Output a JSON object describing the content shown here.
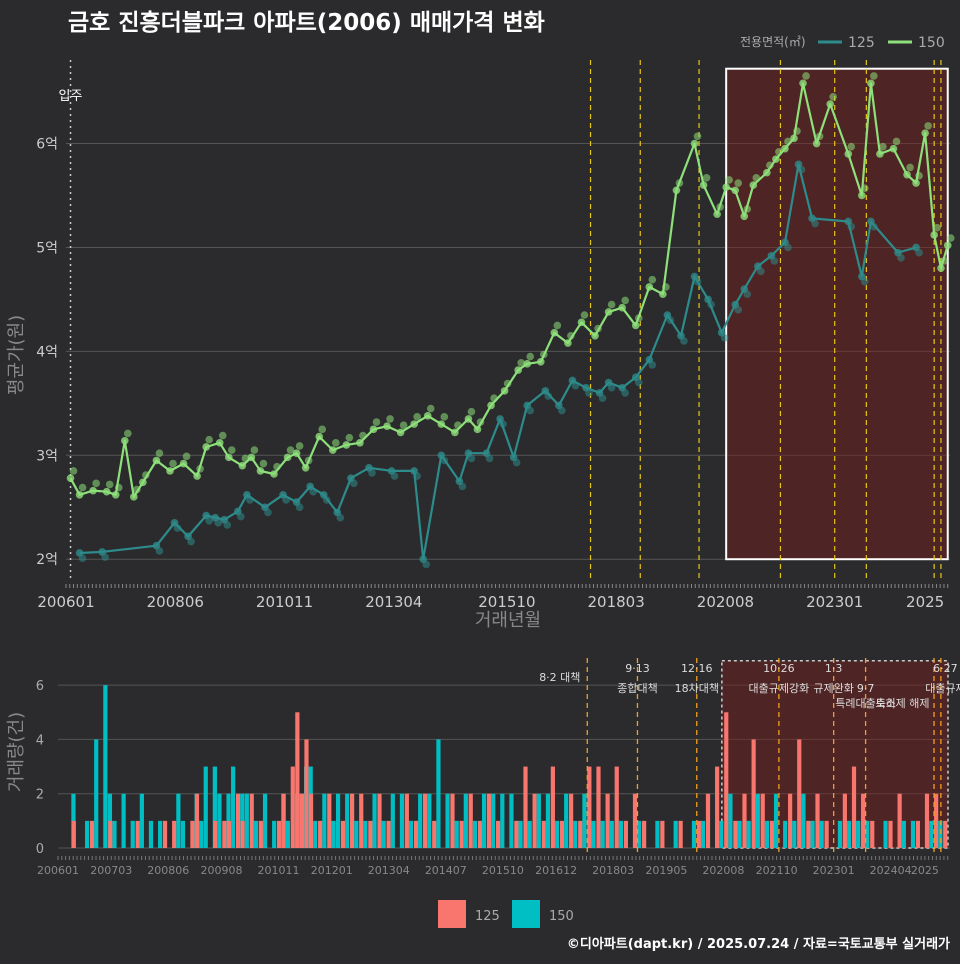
{
  "title": "금호 진흥더블파크 아파트(2006) 매매가격 변화",
  "footer": "©디아파트(dapt.kr) / 2025.07.24 / 자료=국토교통부 실거래가",
  "colors": {
    "background": "#2b2b2d",
    "s125_line": "#2e8b8b",
    "s150_line": "#8ee07a",
    "bar125": "#f8766d",
    "bar150": "#00bfc4",
    "policy": "#e6c619",
    "highlight": "#7a1d1d",
    "grid": "#555555"
  },
  "chart_data": [
    {
      "type": "line",
      "ylabel": "평균가(원)",
      "xlabel": "거래년월",
      "ylim": [
        1.8,
        6.9
      ],
      "y_ticks": [
        {
          "v": 2,
          "label": "2억"
        },
        {
          "v": 3,
          "label": "3억"
        },
        {
          "v": 4,
          "label": "4억"
        },
        {
          "v": 5,
          "label": "5억"
        },
        {
          "v": 6,
          "label": "6억"
        }
      ],
      "x_ticks": [
        "200601",
        "200806",
        "201011",
        "201304",
        "201510",
        "201803",
        "202008",
        "202301",
        "2025"
      ],
      "legend_title": "전용면적(㎡)",
      "legend_position": "top-right",
      "move_in_label": "입주",
      "series": [
        {
          "name": "125",
          "points": [
            [
              2006.3,
              2.06
            ],
            [
              2006.8,
              2.07
            ],
            [
              2008.0,
              2.13
            ],
            [
              2008.4,
              2.35
            ],
            [
              2008.7,
              2.22
            ],
            [
              2009.1,
              2.42
            ],
            [
              2009.3,
              2.4
            ],
            [
              2009.5,
              2.38
            ],
            [
              2009.8,
              2.46
            ],
            [
              2010.0,
              2.62
            ],
            [
              2010.4,
              2.5
            ],
            [
              2010.8,
              2.62
            ],
            [
              2011.1,
              2.55
            ],
            [
              2011.4,
              2.7
            ],
            [
              2011.7,
              2.62
            ],
            [
              2012.0,
              2.45
            ],
            [
              2012.3,
              2.78
            ],
            [
              2012.7,
              2.88
            ],
            [
              2013.2,
              2.85
            ],
            [
              2013.7,
              2.85
            ],
            [
              2013.9,
              2.0
            ],
            [
              2014.3,
              3.0
            ],
            [
              2014.7,
              2.75
            ],
            [
              2014.9,
              3.02
            ],
            [
              2015.3,
              3.02
            ],
            [
              2015.6,
              3.35
            ],
            [
              2015.9,
              2.98
            ],
            [
              2016.2,
              3.48
            ],
            [
              2016.6,
              3.62
            ],
            [
              2016.9,
              3.48
            ],
            [
              2017.2,
              3.72
            ],
            [
              2017.5,
              3.65
            ],
            [
              2017.8,
              3.6
            ],
            [
              2018.0,
              3.7
            ],
            [
              2018.3,
              3.65
            ],
            [
              2018.6,
              3.75
            ],
            [
              2018.9,
              3.92
            ],
            [
              2019.3,
              4.35
            ],
            [
              2019.6,
              4.15
            ],
            [
              2019.9,
              4.72
            ],
            [
              2020.2,
              4.5
            ],
            [
              2020.5,
              4.18
            ],
            [
              2020.8,
              4.45
            ],
            [
              2021.0,
              4.6
            ],
            [
              2021.3,
              4.82
            ],
            [
              2021.6,
              4.92
            ],
            [
              2021.9,
              5.05
            ],
            [
              2022.2,
              5.8
            ],
            [
              2022.5,
              5.28
            ],
            [
              2023.3,
              5.25
            ],
            [
              2023.6,
              4.72
            ],
            [
              2023.8,
              5.25
            ],
            [
              2024.4,
              4.95
            ],
            [
              2024.8,
              5.0
            ]
          ]
        },
        {
          "name": "150",
          "points": [
            [
              2006.1,
              2.78
            ],
            [
              2006.3,
              2.62
            ],
            [
              2006.6,
              2.66
            ],
            [
              2006.9,
              2.65
            ],
            [
              2007.1,
              2.62
            ],
            [
              2007.3,
              3.14
            ],
            [
              2007.5,
              2.6
            ],
            [
              2007.7,
              2.74
            ],
            [
              2008.0,
              2.95
            ],
            [
              2008.3,
              2.85
            ],
            [
              2008.6,
              2.92
            ],
            [
              2008.9,
              2.8
            ],
            [
              2009.1,
              3.08
            ],
            [
              2009.4,
              3.12
            ],
            [
              2009.6,
              2.98
            ],
            [
              2009.9,
              2.9
            ],
            [
              2010.1,
              2.98
            ],
            [
              2010.3,
              2.85
            ],
            [
              2010.6,
              2.82
            ],
            [
              2010.9,
              2.98
            ],
            [
              2011.1,
              3.02
            ],
            [
              2011.3,
              2.88
            ],
            [
              2011.6,
              3.18
            ],
            [
              2011.9,
              3.05
            ],
            [
              2012.2,
              3.1
            ],
            [
              2012.5,
              3.12
            ],
            [
              2012.8,
              3.25
            ],
            [
              2013.1,
              3.28
            ],
            [
              2013.4,
              3.22
            ],
            [
              2013.7,
              3.3
            ],
            [
              2014.0,
              3.38
            ],
            [
              2014.3,
              3.3
            ],
            [
              2014.6,
              3.22
            ],
            [
              2014.9,
              3.35
            ],
            [
              2015.1,
              3.25
            ],
            [
              2015.4,
              3.48
            ],
            [
              2015.7,
              3.62
            ],
            [
              2016.0,
              3.82
            ],
            [
              2016.2,
              3.88
            ],
            [
              2016.5,
              3.9
            ],
            [
              2016.8,
              4.18
            ],
            [
              2017.1,
              4.08
            ],
            [
              2017.4,
              4.28
            ],
            [
              2017.7,
              4.15
            ],
            [
              2018.0,
              4.38
            ],
            [
              2018.3,
              4.42
            ],
            [
              2018.6,
              4.25
            ],
            [
              2018.9,
              4.62
            ],
            [
              2019.2,
              4.55
            ],
            [
              2019.5,
              5.55
            ],
            [
              2019.9,
              6.0
            ],
            [
              2020.1,
              5.6
            ],
            [
              2020.4,
              5.32
            ],
            [
              2020.6,
              5.58
            ],
            [
              2020.8,
              5.55
            ],
            [
              2021.0,
              5.3
            ],
            [
              2021.2,
              5.6
            ],
            [
              2021.5,
              5.72
            ],
            [
              2021.7,
              5.85
            ],
            [
              2021.9,
              5.95
            ],
            [
              2022.1,
              6.05
            ],
            [
              2022.3,
              6.58
            ],
            [
              2022.6,
              6.0
            ],
            [
              2022.9,
              6.38
            ],
            [
              2023.3,
              5.9
            ],
            [
              2023.6,
              5.5
            ],
            [
              2023.8,
              6.58
            ],
            [
              2024.0,
              5.9
            ],
            [
              2024.3,
              5.95
            ],
            [
              2024.6,
              5.7
            ],
            [
              2024.8,
              5.62
            ],
            [
              2025.0,
              6.1
            ],
            [
              2025.2,
              5.12
            ],
            [
              2025.35,
              4.8
            ],
            [
              2025.5,
              5.02
            ]
          ]
        }
      ],
      "policy_years": [
        2017.6,
        2018.7,
        2020.0,
        2021.8,
        2023.0,
        2023.7,
        2025.2,
        2025.35
      ],
      "highlight_x": [
        2020.6,
        2025.5
      ],
      "highlight_y": [
        2.0,
        6.72
      ]
    },
    {
      "type": "bar",
      "ylabel": "거래량(건)",
      "ylim": [
        0,
        7
      ],
      "y_ticks": [
        0,
        2,
        4,
        6
      ],
      "x_ticks": [
        "200601",
        "200703",
        "200806",
        "200908",
        "201011",
        "201201",
        "201304",
        "201407",
        "201510",
        "201612",
        "201803",
        "201905",
        "202008",
        "202110",
        "202301",
        "202404",
        "2025"
      ],
      "legend": [
        "125",
        "150"
      ],
      "annotations": [
        {
          "date": "8·2 대책",
          "title": ""
        },
        {
          "date": "9·13",
          "title": "종합대책"
        },
        {
          "date": "12·16",
          "title": "18차대책"
        },
        {
          "date": "10·26",
          "title": "대출규제강화"
        },
        {
          "date": "1·3",
          "title": "규제완화"
        },
        {
          "date": "9·7",
          "title": "특례대출축소"
        },
        {
          "date": "토허제 해제",
          "title": ""
        },
        {
          "date": "6·27",
          "title": "대출규제"
        }
      ],
      "bars": [
        [
          2006.1,
          0,
          0
        ],
        [
          2006.2,
          0,
          2
        ],
        [
          2006.3,
          1,
          0
        ],
        [
          2006.5,
          0,
          1
        ],
        [
          2006.7,
          1,
          4
        ],
        [
          2006.9,
          0,
          6
        ],
        [
          2007.0,
          0,
          2
        ],
        [
          2007.1,
          1,
          1
        ],
        [
          2007.3,
          0,
          2
        ],
        [
          2007.5,
          0,
          1
        ],
        [
          2007.7,
          1,
          2
        ],
        [
          2007.9,
          0,
          1
        ],
        [
          2008.1,
          0,
          1
        ],
        [
          2008.3,
          1,
          0
        ],
        [
          2008.5,
          1,
          2
        ],
        [
          2008.6,
          0,
          1
        ],
        [
          2008.9,
          1,
          2
        ],
        [
          2009.0,
          2,
          1
        ],
        [
          2009.1,
          0,
          3
        ],
        [
          2009.3,
          0,
          3
        ],
        [
          2009.4,
          1,
          2
        ],
        [
          2009.6,
          1,
          2
        ],
        [
          2009.7,
          1,
          3
        ],
        [
          2009.9,
          2,
          2
        ],
        [
          2010.0,
          1,
          2
        ],
        [
          2010.2,
          2,
          1
        ],
        [
          2010.4,
          1,
          2
        ],
        [
          2010.6,
          0,
          1
        ],
        [
          2010.8,
          1,
          2
        ],
        [
          2010.9,
          2,
          1
        ],
        [
          2011.1,
          3,
          2
        ],
        [
          2011.2,
          5,
          2
        ],
        [
          2011.3,
          2,
          3
        ],
        [
          2011.4,
          4,
          3
        ],
        [
          2011.5,
          2,
          1
        ],
        [
          2011.7,
          1,
          2
        ],
        [
          2011.9,
          2,
          1
        ],
        [
          2012.0,
          0,
          2
        ],
        [
          2012.2,
          1,
          2
        ],
        [
          2012.4,
          2,
          1
        ],
        [
          2012.6,
          2,
          1
        ],
        [
          2012.8,
          1,
          2
        ],
        [
          2013.0,
          2,
          1
        ],
        [
          2013.2,
          1,
          2
        ],
        [
          2013.4,
          0,
          2
        ],
        [
          2013.6,
          2,
          1
        ],
        [
          2013.8,
          1,
          2
        ],
        [
          2014.0,
          2,
          2
        ],
        [
          2014.2,
          1,
          4
        ],
        [
          2014.4,
          0,
          2
        ],
        [
          2014.6,
          2,
          1
        ],
        [
          2014.8,
          1,
          2
        ],
        [
          2015.0,
          2,
          1
        ],
        [
          2015.2,
          1,
          2
        ],
        [
          2015.4,
          2,
          2
        ],
        [
          2015.6,
          1,
          2
        ],
        [
          2015.8,
          0,
          2
        ],
        [
          2016.0,
          1,
          1
        ],
        [
          2016.2,
          3,
          1
        ],
        [
          2016.4,
          2,
          2
        ],
        [
          2016.6,
          1,
          2
        ],
        [
          2016.8,
          3,
          1
        ],
        [
          2017.0,
          1,
          2
        ],
        [
          2017.2,
          2,
          1
        ],
        [
          2017.4,
          1,
          2
        ],
        [
          2017.6,
          3,
          1
        ],
        [
          2017.8,
          3,
          1
        ],
        [
          2018.0,
          2,
          1
        ],
        [
          2018.2,
          3,
          1
        ],
        [
          2018.4,
          1,
          0
        ],
        [
          2018.6,
          2,
          1
        ],
        [
          2018.8,
          1,
          0
        ],
        [
          2019.0,
          0,
          1
        ],
        [
          2019.2,
          1,
          0
        ],
        [
          2019.4,
          0,
          1
        ],
        [
          2019.6,
          1,
          0
        ],
        [
          2019.8,
          0,
          1
        ],
        [
          2020.0,
          1,
          1
        ],
        [
          2020.2,
          2,
          0
        ],
        [
          2020.4,
          3,
          1
        ],
        [
          2020.6,
          5,
          2
        ],
        [
          2020.8,
          1,
          1
        ],
        [
          2021.0,
          2,
          1
        ],
        [
          2021.2,
          4,
          2
        ],
        [
          2021.4,
          2,
          1
        ],
        [
          2021.6,
          1,
          2
        ],
        [
          2021.8,
          0,
          1
        ],
        [
          2022.0,
          2,
          1
        ],
        [
          2022.2,
          4,
          2
        ],
        [
          2022.4,
          1,
          1
        ],
        [
          2022.6,
          2,
          1
        ],
        [
          2022.8,
          1,
          0
        ],
        [
          2023.0,
          0,
          1
        ],
        [
          2023.2,
          2,
          1
        ],
        [
          2023.4,
          3,
          1
        ],
        [
          2023.6,
          2,
          1
        ],
        [
          2023.8,
          1,
          0
        ],
        [
          2024.0,
          0,
          1
        ],
        [
          2024.2,
          1,
          0
        ],
        [
          2024.4,
          2,
          1
        ],
        [
          2024.6,
          0,
          1
        ],
        [
          2024.8,
          1,
          0
        ],
        [
          2025.0,
          2,
          1
        ],
        [
          2025.2,
          2,
          1
        ],
        [
          2025.4,
          1,
          0
        ]
      ]
    }
  ]
}
